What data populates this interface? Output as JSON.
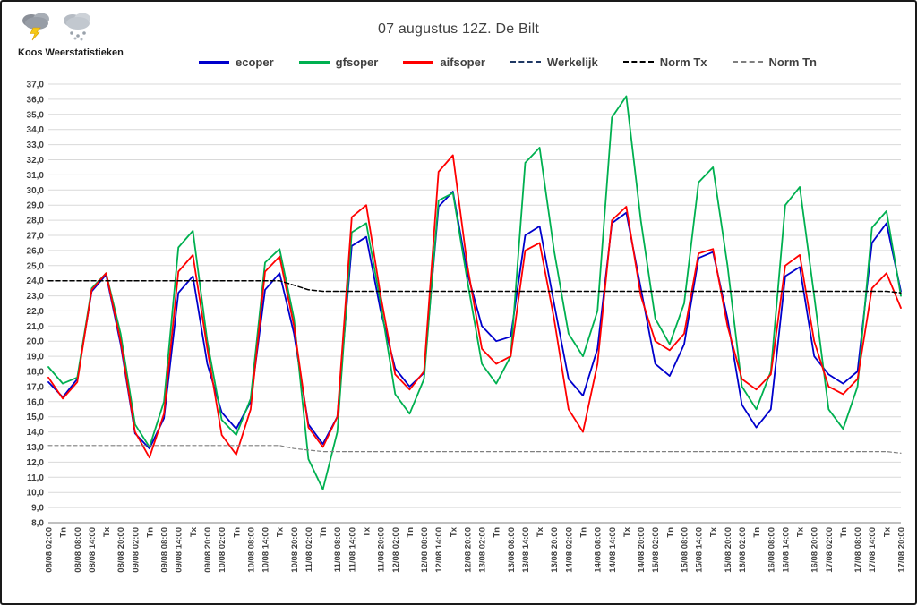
{
  "header": {
    "title": "07 augustus 12Z. De Bilt",
    "logo_text": "Koos Weerstatistieken"
  },
  "chart_data": {
    "type": "line",
    "title": "07 augustus 12Z. De Bilt",
    "xlabel": "",
    "ylabel": "",
    "ylim": [
      8,
      37
    ],
    "ytick_step": 1,
    "grid": "horizontal",
    "legend_position": "top",
    "x_labels": [
      "08/08 02:00",
      "Tn",
      "08/08 08:00",
      "08/08 14:00",
      "Tx",
      "08/08 20:00",
      "09/08 02:00",
      "Tn",
      "09/08 08:00",
      "09/08 14:00",
      "Tx",
      "09/08 20:00",
      "10/08 02:00",
      "Tn",
      "10/08 08:00",
      "10/08 14:00",
      "Tx",
      "10/08 20:00",
      "11/08 02:00",
      "Tn",
      "11/08 08:00",
      "11/08 14:00",
      "Tx",
      "11/08 20:00",
      "12/08 02:00",
      "Tn",
      "12/08 08:00",
      "12/08 14:00",
      "Tx",
      "12/08 20:00",
      "13/08 02:00",
      "Tn",
      "13/08 08:00",
      "13/08 14:00",
      "Tx",
      "13/08 20:00",
      "14/08 02:00",
      "Tn",
      "14/08 08:00",
      "14/08 14:00",
      "Tx",
      "14/08 20:00",
      "15/08 02:00",
      "Tn",
      "15/08 08:00",
      "15/08 14:00",
      "Tx",
      "15/08 20:00",
      "16/08 02:00",
      "Tn",
      "16/08 08:00",
      "16/08 14:00",
      "Tx",
      "16/08 20:00",
      "17/08 02:00",
      "Tn",
      "17/08 08:00",
      "17/08 14:00",
      "Tx",
      "17/08 20:00"
    ],
    "series": [
      {
        "name": "ecoper",
        "color": "#0000CC",
        "dash": null,
        "width": 1.8,
        "values": [
          17.3,
          16.3,
          17.5,
          23.3,
          24.4,
          19.8,
          13.9,
          12.9,
          14.9,
          23.2,
          24.3,
          18.5,
          15.3,
          14.2,
          16.0,
          23.4,
          24.5,
          20.5,
          14.5,
          13.2,
          15.0,
          26.3,
          26.9,
          22.0,
          18.2,
          17.0,
          17.9,
          28.9,
          29.9,
          24.5,
          21.0,
          20.0,
          20.3,
          27.0,
          27.6,
          22.5,
          17.5,
          16.4,
          19.5,
          27.8,
          28.5,
          23.5,
          18.5,
          17.7,
          19.8,
          25.5,
          25.9,
          21.5,
          15.8,
          14.3,
          15.5,
          24.3,
          24.9,
          19.0,
          17.8,
          17.2,
          18.0,
          26.5,
          27.8,
          23.3
        ]
      },
      {
        "name": "gfsoper",
        "color": "#00B050",
        "dash": null,
        "width": 1.8,
        "values": [
          18.3,
          17.2,
          17.6,
          23.5,
          24.5,
          20.5,
          14.5,
          13.0,
          16.0,
          26.2,
          27.3,
          20.0,
          14.8,
          13.8,
          16.2,
          25.2,
          26.1,
          21.5,
          12.2,
          10.2,
          14.0,
          27.2,
          27.8,
          22.5,
          16.5,
          15.2,
          17.5,
          29.3,
          29.8,
          24.0,
          18.5,
          17.2,
          19.0,
          31.8,
          32.8,
          26.0,
          20.5,
          19.0,
          22.0,
          34.8,
          36.2,
          28.0,
          21.5,
          19.8,
          22.5,
          30.5,
          31.5,
          25.0,
          17.0,
          15.5,
          18.0,
          29.0,
          30.2,
          23.0,
          15.5,
          14.2,
          17.0,
          27.5,
          28.6,
          23.0
        ]
      },
      {
        "name": "aifsoper",
        "color": "#FF0000",
        "dash": null,
        "width": 1.8,
        "values": [
          17.6,
          16.2,
          17.3,
          23.4,
          24.5,
          20.0,
          14.0,
          12.3,
          15.2,
          24.6,
          25.7,
          19.5,
          13.8,
          12.5,
          15.5,
          24.6,
          25.6,
          21.0,
          14.3,
          13.0,
          15.0,
          28.2,
          29.0,
          23.0,
          17.8,
          16.8,
          18.0,
          31.2,
          32.3,
          25.0,
          19.5,
          18.5,
          19.0,
          26.0,
          26.5,
          21.5,
          15.5,
          14.0,
          18.5,
          28.0,
          28.9,
          23.0,
          20.0,
          19.4,
          20.5,
          25.8,
          26.1,
          21.0,
          17.5,
          16.8,
          17.8,
          25.0,
          25.7,
          20.0,
          17.0,
          16.5,
          17.5,
          23.5,
          24.5,
          22.2
        ]
      },
      {
        "name": "Werkelijk",
        "color": "#1F3864",
        "dash": "5 3",
        "width": 1.4,
        "values": []
      },
      {
        "name": "Norm Tx",
        "color": "#000000",
        "dash": "5 3",
        "width": 1.5,
        "values": [
          24.0,
          24.0,
          24.0,
          24.0,
          24.0,
          24.0,
          24.0,
          24.0,
          24.0,
          24.0,
          24.0,
          24.0,
          24.0,
          24.0,
          24.0,
          24.0,
          24.0,
          23.7,
          23.4,
          23.3,
          23.3,
          23.3,
          23.3,
          23.3,
          23.3,
          23.3,
          23.3,
          23.3,
          23.3,
          23.3,
          23.3,
          23.3,
          23.3,
          23.3,
          23.3,
          23.3,
          23.3,
          23.3,
          23.3,
          23.3,
          23.3,
          23.3,
          23.3,
          23.3,
          23.3,
          23.3,
          23.3,
          23.3,
          23.3,
          23.3,
          23.3,
          23.3,
          23.3,
          23.3,
          23.3,
          23.3,
          23.3,
          23.3,
          23.3,
          23.2
        ]
      },
      {
        "name": "Norm Tn",
        "color": "#7F7F7F",
        "dash": "4 3",
        "width": 1.2,
        "values": [
          13.1,
          13.1,
          13.1,
          13.1,
          13.1,
          13.1,
          13.1,
          13.1,
          13.1,
          13.1,
          13.1,
          13.1,
          13.1,
          13.1,
          13.1,
          13.1,
          13.1,
          12.9,
          12.8,
          12.7,
          12.7,
          12.7,
          12.7,
          12.7,
          12.7,
          12.7,
          12.7,
          12.7,
          12.7,
          12.7,
          12.7,
          12.7,
          12.7,
          12.7,
          12.7,
          12.7,
          12.7,
          12.7,
          12.7,
          12.7,
          12.7,
          12.7,
          12.7,
          12.7,
          12.7,
          12.7,
          12.7,
          12.7,
          12.7,
          12.7,
          12.7,
          12.7,
          12.7,
          12.7,
          12.7,
          12.7,
          12.7,
          12.7,
          12.7,
          12.6
        ]
      }
    ]
  }
}
